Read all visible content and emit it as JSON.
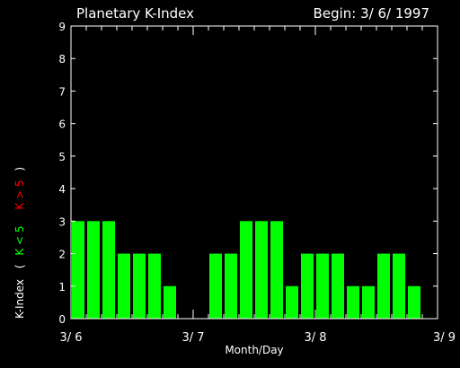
{
  "chart_data": {
    "type": "bar",
    "title": "Planetary K-Index",
    "begin_label": "Begin: 3/ 6/ 1997",
    "xlabel": "Month/Day",
    "ylabel": {
      "prefix": "K-Index",
      "open": "(",
      "green_part": "K < 5",
      "red_part": "K > 5",
      "close": ")"
    },
    "ylim": [
      0,
      9
    ],
    "yticks": [
      "0",
      "1",
      "2",
      "3",
      "4",
      "5",
      "6",
      "7",
      "8",
      "9"
    ],
    "xlim": [
      0,
      3
    ],
    "xtick_positions": [
      0,
      1,
      2,
      3
    ],
    "xtick_labels": [
      "3/ 6",
      "3/ 7",
      "3/ 8",
      "3/ 9"
    ],
    "bar_width_days": 0.1,
    "values": [
      3,
      3,
      3,
      2,
      2,
      2,
      1,
      0,
      0,
      2,
      2,
      3,
      3,
      3,
      1,
      2,
      2,
      2,
      1,
      1,
      2,
      2,
      1,
      null
    ],
    "colors": {
      "low": "#00ff00",
      "high": "#ff0000",
      "axis": "#ffffff",
      "background": "#000000"
    }
  }
}
